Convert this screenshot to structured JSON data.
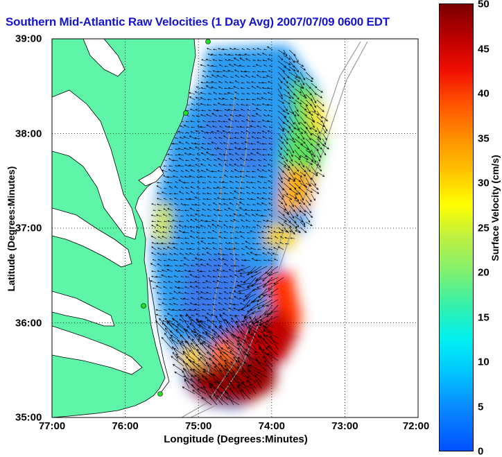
{
  "title": "Southern Mid-Atlantic Raw Velocities (1 Day Avg) 2007/07/09 0600 EDT",
  "axes": {
    "xlabel": "Longitude (Degrees:Minutes)",
    "ylabel": "Latitude (Degrees:Minutes)",
    "xticks": [
      "77:00",
      "76:00",
      "75:00",
      "74:00",
      "73:00",
      "72:00"
    ],
    "yticks": [
      "39:00",
      "38:00",
      "37:00",
      "36:00",
      "35:00"
    ],
    "grid": "dotted"
  },
  "colorbar": {
    "label": "Surface Velocity (cm/s)",
    "ticks": [
      "50",
      "45",
      "40",
      "35",
      "30",
      "25",
      "20",
      "15",
      "10",
      "5",
      "0"
    ],
    "range": [
      0,
      50
    ]
  },
  "colors": {
    "land": "#5ef5a9",
    "water": "#ffffff",
    "title": "#1515d0",
    "station": "#22dd22",
    "vector": "#000000",
    "bathymetry": "#999999"
  }
}
